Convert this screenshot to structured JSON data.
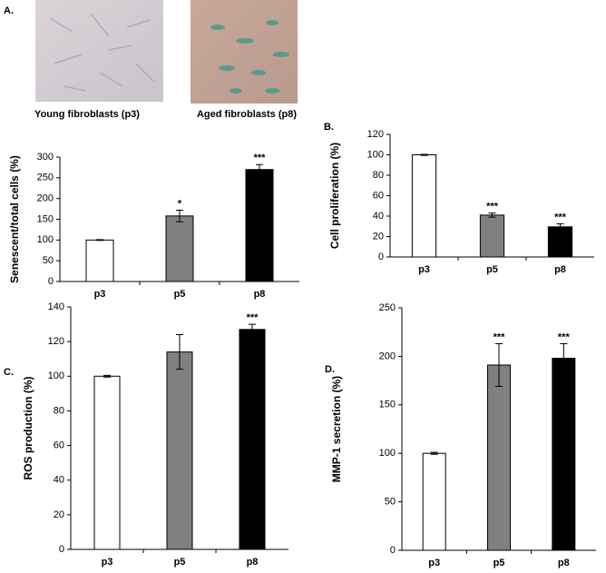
{
  "panel_a": {
    "label": "A.",
    "captions": [
      "Young fibroblasts (p3)",
      "Aged fibroblasts (p8)"
    ]
  },
  "chart_data": [
    {
      "type": "bar",
      "ylabel": "Senescent/total cells (%)",
      "categories": [
        "p3",
        "p5",
        "p8"
      ],
      "values": [
        100,
        158,
        270
      ],
      "errors": [
        1,
        14,
        12
      ],
      "annotations": [
        null,
        "*",
        "***"
      ],
      "colors": [
        "#ffffff",
        "#808080",
        "#000000"
      ],
      "ylim": [
        0,
        300
      ],
      "yticks": [
        0,
        50,
        100,
        150,
        200,
        250,
        300
      ]
    },
    {
      "type": "bar",
      "panel_label": "B.",
      "ylabel": "Cell proliferation (%)",
      "categories": [
        "p3",
        "p5",
        "p8"
      ],
      "values": [
        100,
        41,
        29.5
      ],
      "errors": [
        0.5,
        2,
        3
      ],
      "annotations": [
        null,
        "***",
        "***"
      ],
      "colors": [
        "#ffffff",
        "#808080",
        "#000000"
      ],
      "ylim": [
        0,
        120
      ],
      "yticks": [
        0,
        20,
        40,
        60,
        80,
        100,
        120
      ]
    },
    {
      "type": "bar",
      "panel_label": "C.",
      "ylabel": "ROS production (%)",
      "categories": [
        "p3",
        "p5",
        "p8"
      ],
      "values": [
        100,
        114,
        127
      ],
      "errors": [
        0.5,
        10,
        3
      ],
      "annotations": [
        null,
        null,
        "***"
      ],
      "colors": [
        "#ffffff",
        "#808080",
        "#000000"
      ],
      "ylim": [
        0,
        140
      ],
      "yticks": [
        0,
        20,
        40,
        60,
        80,
        100,
        120,
        140
      ]
    },
    {
      "type": "bar",
      "panel_label": "D.",
      "ylabel": "MMP-1 secretion (%)",
      "categories": [
        "p3",
        "p5",
        "p8"
      ],
      "values": [
        100,
        191,
        198
      ],
      "errors": [
        1,
        22,
        15
      ],
      "annotations": [
        null,
        "***",
        "***"
      ],
      "colors": [
        "#ffffff",
        "#808080",
        "#000000"
      ],
      "ylim": [
        0,
        250
      ],
      "yticks": [
        0,
        50,
        100,
        150,
        200,
        250
      ]
    }
  ]
}
